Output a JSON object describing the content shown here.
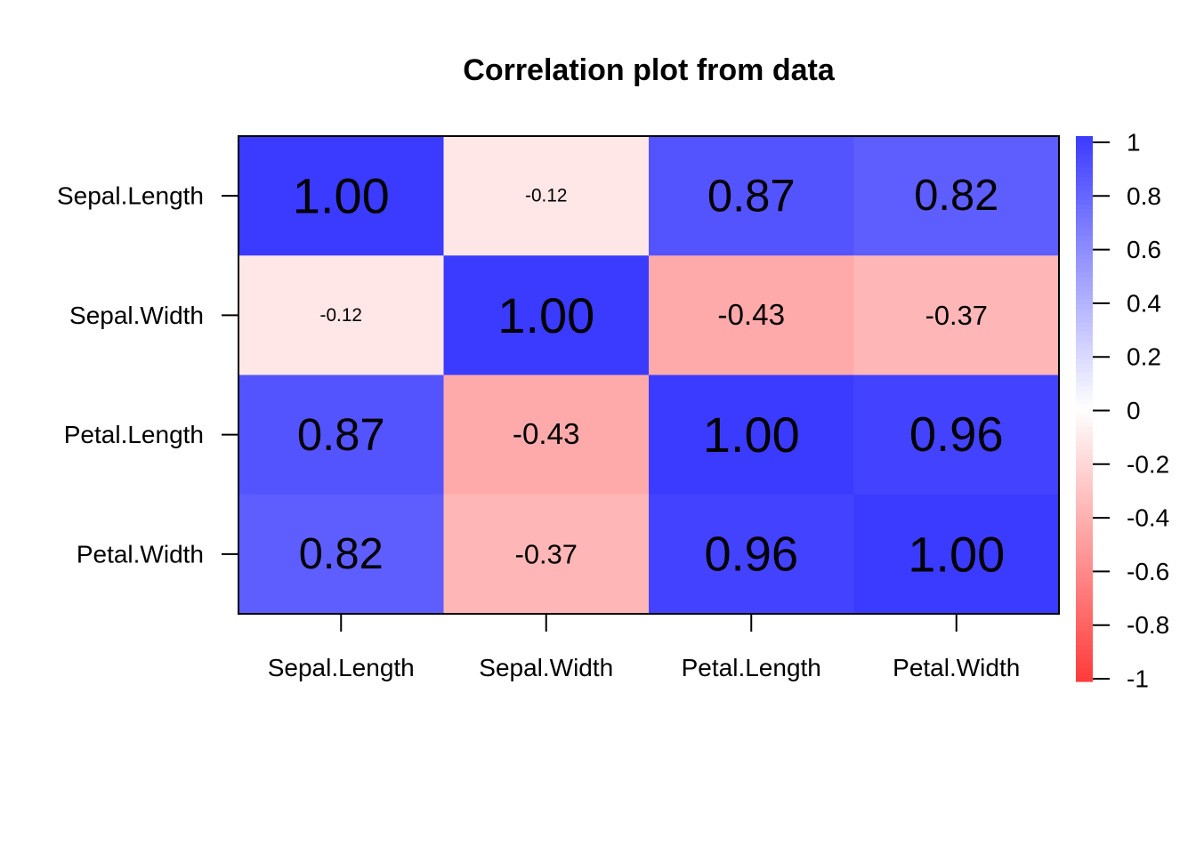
{
  "chart_data": {
    "type": "heatmap",
    "title": "Correlation plot from data",
    "rows": [
      "Sepal.Length",
      "Sepal.Width",
      "Petal.Length",
      "Petal.Width"
    ],
    "columns": [
      "Sepal.Length",
      "Sepal.Width",
      "Petal.Length",
      "Petal.Width"
    ],
    "values": [
      [
        1.0,
        -0.12,
        0.87,
        0.82
      ],
      [
        -0.12,
        1.0,
        -0.43,
        -0.37
      ],
      [
        0.87,
        -0.43,
        1.0,
        0.96
      ],
      [
        0.82,
        -0.37,
        0.96,
        1.0
      ]
    ],
    "labels": [
      [
        "1.00",
        "-0.12",
        "0.87",
        "0.82"
      ],
      [
        "-0.12",
        "1.00",
        "-0.43",
        "-0.37"
      ],
      [
        "0.87",
        "-0.43",
        "1.00",
        "0.96"
      ],
      [
        "0.82",
        "-0.37",
        "0.96",
        "1.00"
      ]
    ],
    "color_scale": {
      "range": [
        -1,
        1
      ],
      "ticks": [
        "1",
        "0.8",
        "0.6",
        "0.4",
        "0.2",
        "0",
        "-0.2",
        "-0.4",
        "-0.6",
        "-0.8",
        "-1"
      ],
      "low_color": "#ff3a3a",
      "mid_color": "#ffffff",
      "high_color": "#3b3bff"
    }
  }
}
